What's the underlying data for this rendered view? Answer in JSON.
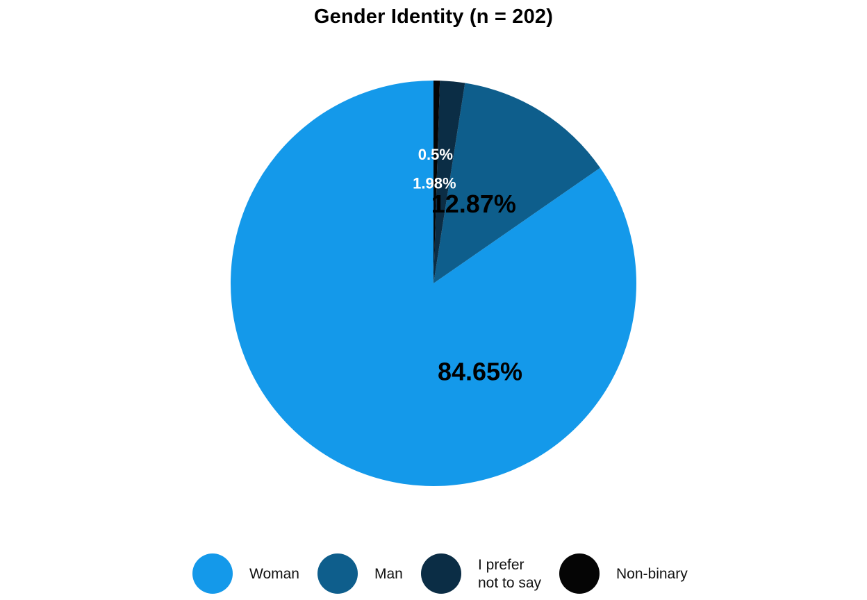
{
  "chart_data": {
    "type": "pie",
    "title": "Gender Identity (n = 202)",
    "slices": [
      {
        "label": "Woman",
        "value": 84.65,
        "value_label": "84.65%",
        "color": "#1499ea",
        "label_color": "#000000"
      },
      {
        "label": "Man",
        "value": 12.87,
        "value_label": "12.87%",
        "color": "#0e5e8c",
        "label_color": "#000000"
      },
      {
        "label": "I prefer not to say",
        "value": 1.98,
        "value_label": "1.98%",
        "color": "#0b2d45",
        "label_color": "#ffffff"
      },
      {
        "label": "Non-binary",
        "value": 0.5,
        "value_label": "0.5%",
        "color": "#050505",
        "label_color": "#ffffff"
      }
    ],
    "legend": {
      "position": "bottom",
      "items": [
        "Woman",
        "Man",
        "I prefer\nnot to say",
        "Non-binary"
      ]
    },
    "start_angle": "top",
    "direction": "clockwise"
  }
}
